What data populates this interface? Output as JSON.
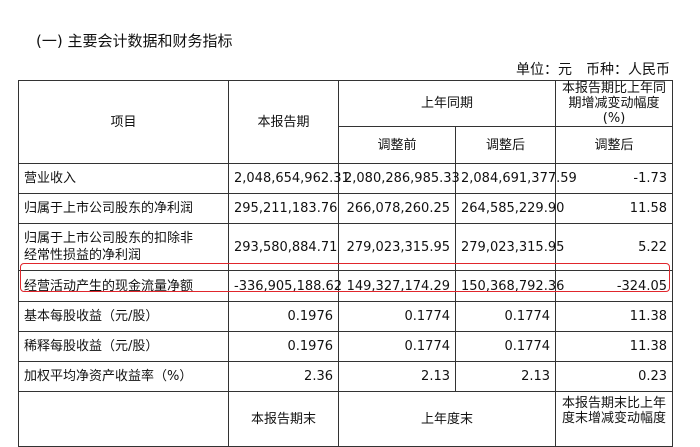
{
  "header": {
    "title": "(一) 主要会计数据和财务指标",
    "unit": "单位：元",
    "currency": "币种：人民币"
  },
  "table": {
    "header": [
      "项目",
      "本报告期",
      "上年同期",
      [
        "本报告期比上年同",
        "期增减变动幅度",
        "(%)"
      ]
    ],
    "subheader": [
      "调整前",
      "调整后",
      "调整后"
    ],
    "rows": [
      [
        "营业收入",
        "2,048,654,962.31",
        "2,080,286,985.33",
        "2,084,691,377.59",
        "-1.73"
      ],
      [
        "归属于上市公司股东的净利润",
        "295,211,183.76",
        "266,078,260.25",
        "264,585,229.90",
        "11.58"
      ],
      [
        "归属于上市公司股东的扣除非经常性损益的净利润",
        "293,580,884.71",
        "279,023,315.95",
        "279,023,315.95",
        "5.22"
      ],
      [
        "经营活动产生的现金流量净额",
        "-336,905,188.62",
        "149,327,174.29",
        "150,368,792.36",
        "-324.05"
      ],
      [
        "基本每股收益（元/股）",
        "0.1976",
        "0.1774",
        "0.1774",
        "11.38"
      ],
      [
        "稀释每股收益（元/股）",
        "0.1976",
        "0.1774",
        "0.1774",
        "11.38"
      ],
      [
        "加权平均净资产收益率（%）",
        "2.36",
        "2.13",
        "2.13",
        "0.23"
      ]
    ],
    "footer_header": [
      "本报告期末",
      "上年度末",
      [
        "本报告期末比上年",
        "度末增减变动幅度"
      ]
    ]
  }
}
